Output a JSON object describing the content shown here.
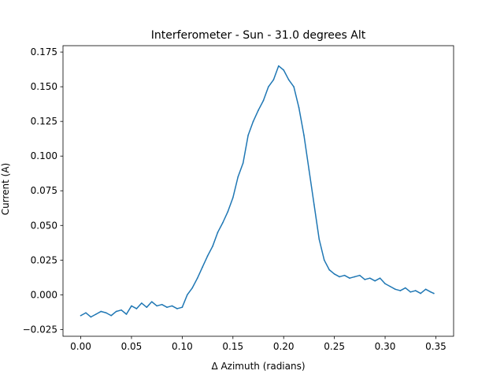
{
  "chart_data": {
    "type": "line",
    "title": "Interferometer - Sun - 31.0 degrees Alt",
    "xlabel": "Δ Azimuth (radians)",
    "ylabel": "Current (A)",
    "xlim": [
      -0.0175,
      0.3675
    ],
    "ylim": [
      -0.0299,
      0.1796
    ],
    "x_ticks": [
      0.0,
      0.05,
      0.1,
      0.15,
      0.2,
      0.25,
      0.3,
      0.35
    ],
    "x_tick_labels": [
      "0.00",
      "0.05",
      "0.10",
      "0.15",
      "0.20",
      "0.25",
      "0.30",
      "0.35"
    ],
    "y_ticks": [
      -0.025,
      0.0,
      0.025,
      0.05,
      0.075,
      0.1,
      0.125,
      0.15,
      0.175
    ],
    "y_tick_labels": [
      "−0.025",
      "0.000",
      "0.025",
      "0.050",
      "0.075",
      "0.100",
      "0.125",
      "0.150",
      "0.175"
    ],
    "grid": false,
    "line_color": "#1f77b4",
    "series": [
      {
        "x": [
          0.0,
          0.005,
          0.01,
          0.015,
          0.02,
          0.025,
          0.03,
          0.035,
          0.04,
          0.045,
          0.05,
          0.055,
          0.06,
          0.065,
          0.07,
          0.075,
          0.08,
          0.085,
          0.09,
          0.095,
          0.1,
          0.105,
          0.11,
          0.115,
          0.12,
          0.125,
          0.13,
          0.135,
          0.14,
          0.145,
          0.15,
          0.155,
          0.16,
          0.165,
          0.17,
          0.175,
          0.18,
          0.185,
          0.19,
          0.195,
          0.2,
          0.205,
          0.21,
          0.215,
          0.22,
          0.225,
          0.23,
          0.235,
          0.24,
          0.245,
          0.25,
          0.255,
          0.26,
          0.265,
          0.27,
          0.275,
          0.28,
          0.285,
          0.29,
          0.295,
          0.3,
          0.305,
          0.31,
          0.315,
          0.32,
          0.325,
          0.33,
          0.335,
          0.34,
          0.345,
          0.348
        ],
        "y": [
          -0.015,
          -0.013,
          -0.016,
          -0.014,
          -0.012,
          -0.013,
          -0.015,
          -0.012,
          -0.011,
          -0.014,
          -0.008,
          -0.01,
          -0.006,
          -0.009,
          -0.005,
          -0.008,
          -0.007,
          -0.009,
          -0.008,
          -0.01,
          -0.009,
          0.0,
          0.005,
          0.012,
          0.02,
          0.028,
          0.035,
          0.045,
          0.052,
          0.06,
          0.07,
          0.085,
          0.095,
          0.115,
          0.125,
          0.133,
          0.14,
          0.15,
          0.155,
          0.165,
          0.162,
          0.155,
          0.15,
          0.135,
          0.115,
          0.09,
          0.065,
          0.04,
          0.025,
          0.018,
          0.015,
          0.013,
          0.014,
          0.012,
          0.013,
          0.014,
          0.011,
          0.012,
          0.01,
          0.012,
          0.008,
          0.006,
          0.004,
          0.003,
          0.005,
          0.002,
          0.003,
          0.001,
          0.004,
          0.002,
          0.001
        ]
      }
    ]
  }
}
